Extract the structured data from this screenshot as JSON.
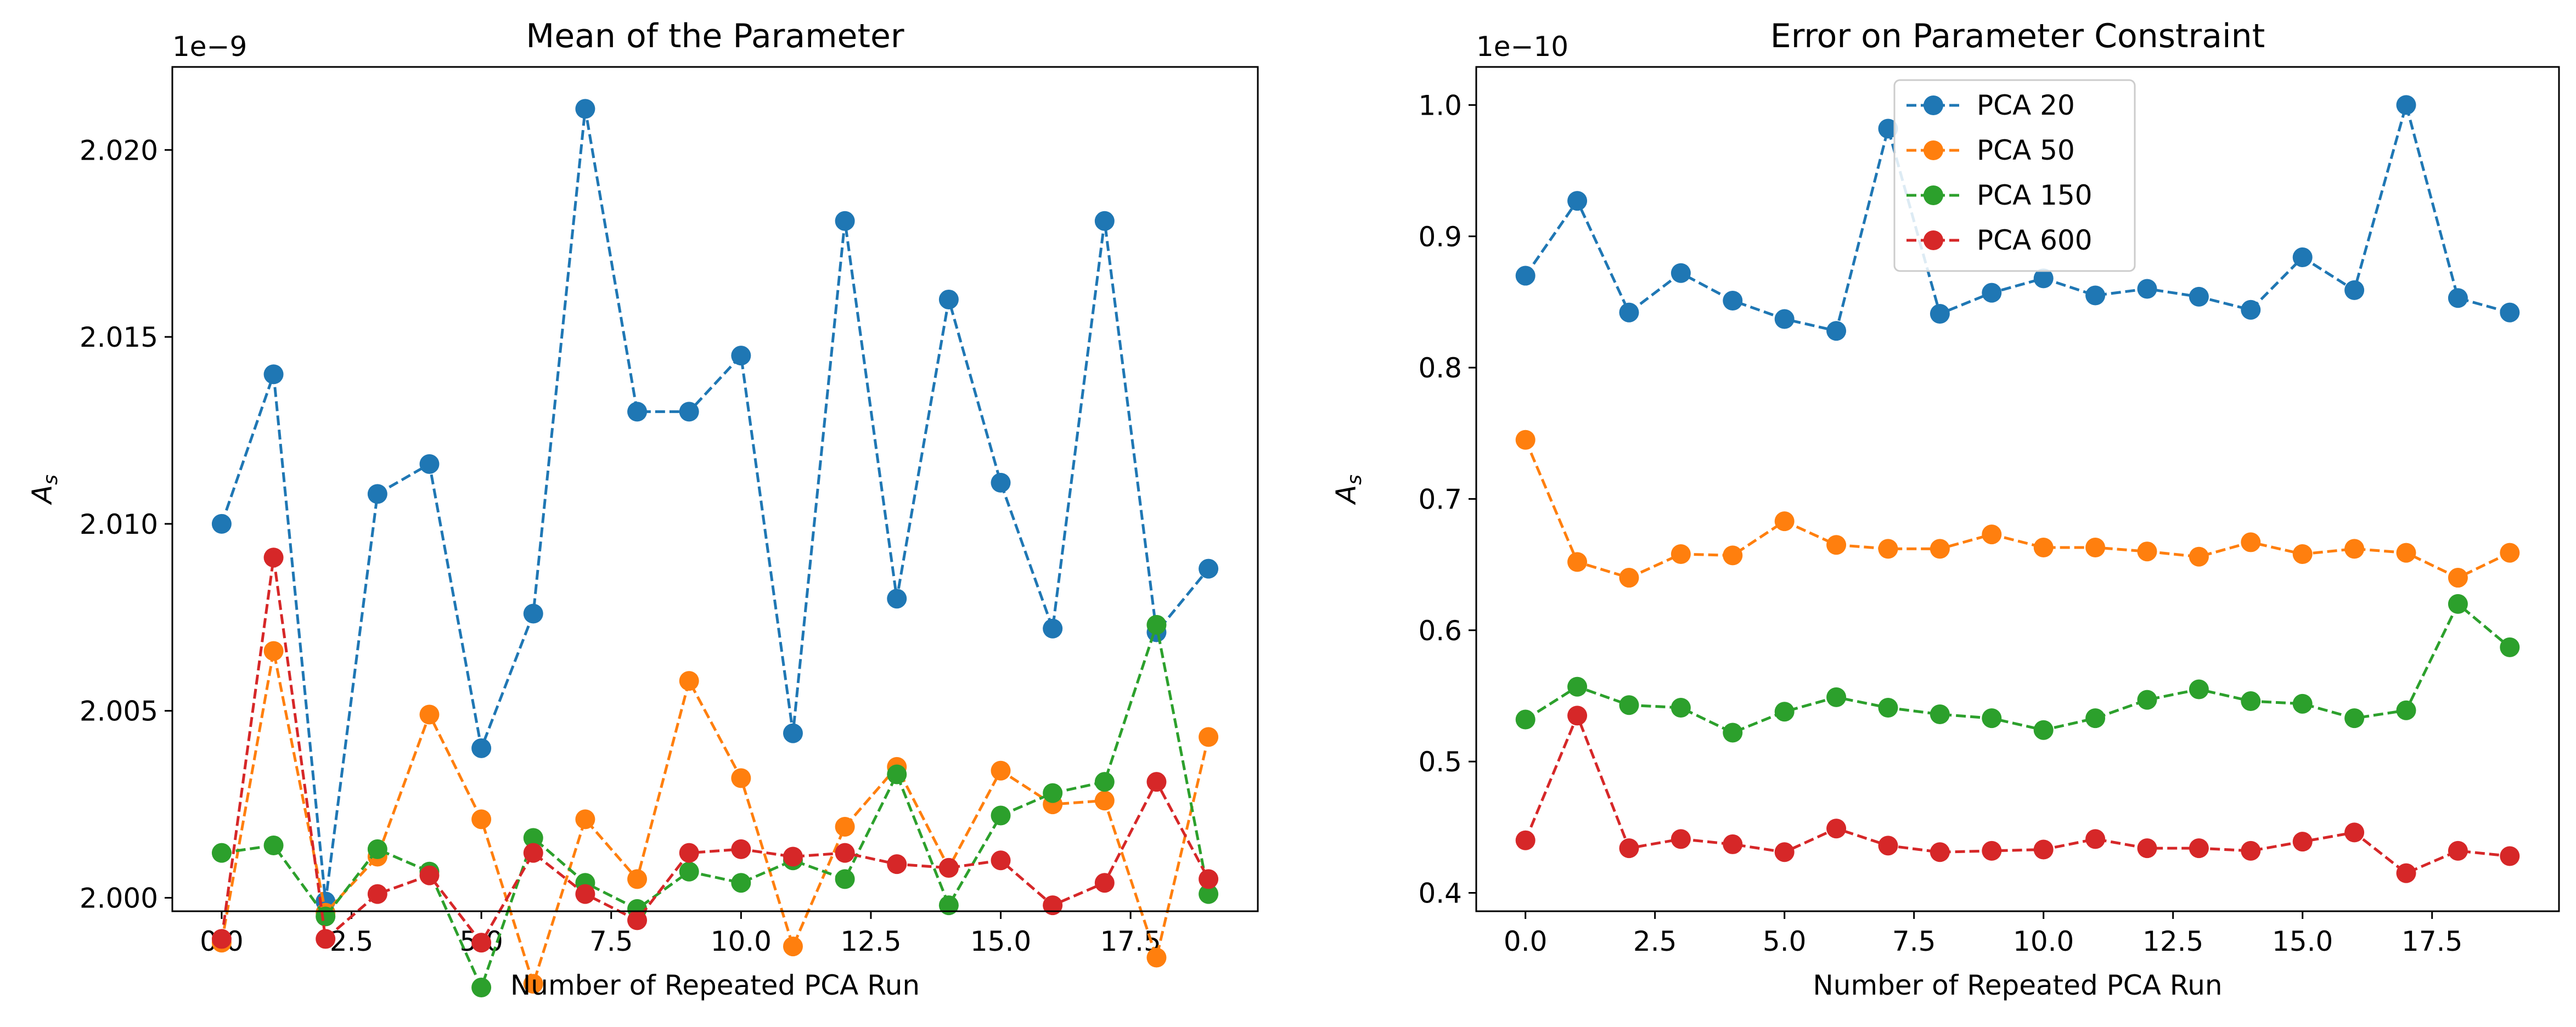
{
  "chart_data": [
    {
      "type": "line",
      "title": "Mean of the Parameter",
      "xlabel": "Number of Repeated PCA Run",
      "ylabel": "A",
      "ylabel_sub": "s",
      "offset_label": "1e−9",
      "xlim": [
        -0.95,
        19.95
      ],
      "ylim": [
        1.99964,
        2.02222
      ],
      "x_ticks": [
        0.0,
        2.5,
        5.0,
        7.5,
        10.0,
        12.5,
        15.0,
        17.5
      ],
      "x_tick_labels": [
        "0.0",
        "2.5",
        "5.0",
        "7.5",
        "10.0",
        "12.5",
        "15.0",
        "17.5"
      ],
      "y_ticks": [
        2.0,
        2.005,
        2.01,
        2.015,
        2.02
      ],
      "y_tick_labels": [
        "2.000",
        "2.005",
        "2.010",
        "2.015",
        "2.020"
      ],
      "x": [
        0,
        1,
        2,
        3,
        4,
        5,
        6,
        7,
        8,
        9,
        10,
        11,
        12,
        13,
        14,
        15,
        16,
        17,
        18,
        19
      ],
      "series": [
        {
          "color": "#1f77b4",
          "values": [
            2.01,
            2.014,
            1.9999,
            2.0108,
            2.0116,
            2.004,
            2.0076,
            2.0211,
            2.013,
            2.013,
            2.0145,
            2.0044,
            2.0181,
            2.008,
            2.016,
            2.0111,
            2.0072,
            2.0181,
            2.0071,
            2.0088
          ]
        },
        {
          "color": "#ff7f0e",
          "values": [
            1.9988,
            2.0066,
            1.9996,
            2.0011,
            2.0049,
            2.0021,
            1.9977,
            2.0021,
            2.0005,
            2.0058,
            2.0032,
            1.9987,
            2.0019,
            2.0035,
            2.0008,
            2.0034,
            2.0025,
            2.0026,
            1.9984,
            2.0043
          ]
        },
        {
          "color": "#2ca02c",
          "values": [
            2.0012,
            2.0014,
            1.9995,
            2.0013,
            2.0007,
            1.9976,
            2.0016,
            2.0004,
            1.9997,
            2.0007,
            2.0004,
            2.001,
            2.0005,
            2.0033,
            1.9998,
            2.0022,
            2.0028,
            2.0031,
            2.0073,
            2.0001
          ]
        },
        {
          "color": "#d62728",
          "values": [
            1.9989,
            2.0091,
            1.9989,
            2.0001,
            2.0006,
            1.9988,
            2.0012,
            2.0001,
            1.9994,
            2.0012,
            2.0013,
            2.0011,
            2.0012,
            2.0009,
            2.0008,
            2.001,
            1.9998,
            2.0004,
            2.0031,
            2.0005
          ]
        }
      ]
    },
    {
      "type": "line",
      "title": "Error on Parameter Constraint",
      "xlabel": "Number of Repeated PCA Run",
      "ylabel": "A",
      "ylabel_sub": "s",
      "offset_label": "1e−10",
      "xlim": [
        -0.95,
        19.95
      ],
      "ylim": [
        0.386,
        1.029
      ],
      "x_ticks": [
        0.0,
        2.5,
        5.0,
        7.5,
        10.0,
        12.5,
        15.0,
        17.5
      ],
      "x_tick_labels": [
        "0.0",
        "2.5",
        "5.0",
        "7.5",
        "10.0",
        "12.5",
        "15.0",
        "17.5"
      ],
      "y_ticks": [
        0.4,
        0.5,
        0.6,
        0.7,
        0.8,
        0.9,
        1.0
      ],
      "y_tick_labels": [
        "0.4",
        "0.5",
        "0.6",
        "0.7",
        "0.8",
        "0.9",
        "1.0"
      ],
      "legend_position": "top-center",
      "x": [
        0,
        1,
        2,
        3,
        4,
        5,
        6,
        7,
        8,
        9,
        10,
        11,
        12,
        13,
        14,
        15,
        16,
        17,
        18,
        19
      ],
      "series": [
        {
          "name": "PCA 20",
          "color": "#1f77b4",
          "values": [
            0.87,
            0.927,
            0.842,
            0.872,
            0.851,
            0.837,
            0.828,
            0.982,
            0.841,
            0.857,
            0.868,
            0.855,
            0.86,
            0.854,
            0.844,
            0.884,
            0.859,
            1.0,
            0.853,
            0.842
          ]
        },
        {
          "name": "PCA 50",
          "color": "#ff7f0e",
          "values": [
            0.745,
            0.652,
            0.64,
            0.658,
            0.657,
            0.683,
            0.665,
            0.662,
            0.662,
            0.673,
            0.663,
            0.663,
            0.66,
            0.656,
            0.667,
            0.658,
            0.662,
            0.659,
            0.64,
            0.659
          ]
        },
        {
          "name": "PCA 150",
          "color": "#2ca02c",
          "values": [
            0.532,
            0.557,
            0.543,
            0.541,
            0.522,
            0.538,
            0.549,
            0.541,
            0.536,
            0.533,
            0.524,
            0.533,
            0.547,
            0.555,
            0.546,
            0.544,
            0.533,
            0.539,
            0.62,
            0.587
          ]
        },
        {
          "name": "PCA 600",
          "color": "#d62728",
          "values": [
            0.44,
            0.535,
            0.434,
            0.441,
            0.437,
            0.431,
            0.449,
            0.436,
            0.431,
            0.432,
            0.433,
            0.441,
            0.434,
            0.434,
            0.432,
            0.439,
            0.446,
            0.415,
            0.432,
            0.428
          ]
        }
      ]
    }
  ]
}
